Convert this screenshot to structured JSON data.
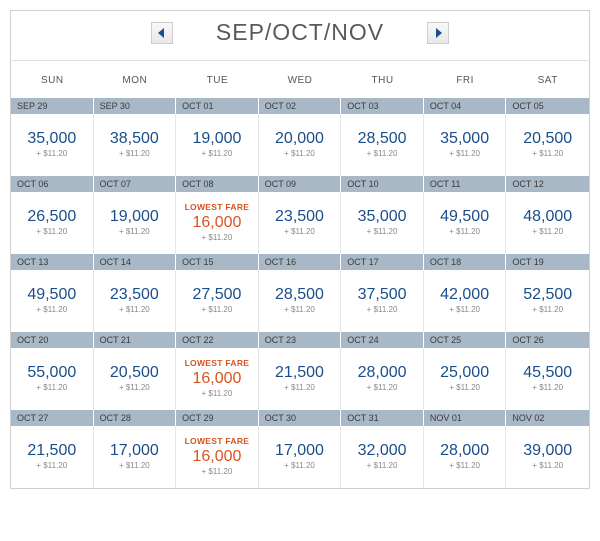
{
  "header": {
    "title": "SEP/OCT/NOV"
  },
  "dayLabels": [
    "SUN",
    "MON",
    "TUE",
    "WED",
    "THU",
    "FRI",
    "SAT"
  ],
  "lowestFareLabel": "LOWEST FARE",
  "taxLabel": "+ $11.20",
  "colors": {
    "miles": "#1a4e8a",
    "lowest": "#d9531e",
    "dateBar": "#a9b8c7",
    "arrow": "#1a4e8a"
  },
  "weeks": [
    {
      "dates": [
        "SEP 29",
        "SEP 30",
        "OCT 01",
        "OCT 02",
        "OCT 03",
        "OCT 04",
        "OCT 05"
      ],
      "cells": [
        {
          "miles": "35,000",
          "lowest": false
        },
        {
          "miles": "38,500",
          "lowest": false
        },
        {
          "miles": "19,000",
          "lowest": false
        },
        {
          "miles": "20,000",
          "lowest": false
        },
        {
          "miles": "28,500",
          "lowest": false
        },
        {
          "miles": "35,000",
          "lowest": false
        },
        {
          "miles": "20,500",
          "lowest": false
        }
      ]
    },
    {
      "dates": [
        "OCT 06",
        "OCT 07",
        "OCT 08",
        "OCT 09",
        "OCT 10",
        "OCT 11",
        "OCT 12"
      ],
      "cells": [
        {
          "miles": "26,500",
          "lowest": false
        },
        {
          "miles": "19,000",
          "lowest": false
        },
        {
          "miles": "16,000",
          "lowest": true
        },
        {
          "miles": "23,500",
          "lowest": false
        },
        {
          "miles": "35,000",
          "lowest": false
        },
        {
          "miles": "49,500",
          "lowest": false
        },
        {
          "miles": "48,000",
          "lowest": false
        }
      ]
    },
    {
      "dates": [
        "OCT 13",
        "OCT 14",
        "OCT 15",
        "OCT 16",
        "OCT 17",
        "OCT 18",
        "OCT 19"
      ],
      "cells": [
        {
          "miles": "49,500",
          "lowest": false
        },
        {
          "miles": "23,500",
          "lowest": false
        },
        {
          "miles": "27,500",
          "lowest": false
        },
        {
          "miles": "28,500",
          "lowest": false
        },
        {
          "miles": "37,500",
          "lowest": false
        },
        {
          "miles": "42,000",
          "lowest": false
        },
        {
          "miles": "52,500",
          "lowest": false
        }
      ]
    },
    {
      "dates": [
        "OCT 20",
        "OCT 21",
        "OCT 22",
        "OCT 23",
        "OCT 24",
        "OCT 25",
        "OCT 26"
      ],
      "cells": [
        {
          "miles": "55,000",
          "lowest": false
        },
        {
          "miles": "20,500",
          "lowest": false
        },
        {
          "miles": "16,000",
          "lowest": true
        },
        {
          "miles": "21,500",
          "lowest": false
        },
        {
          "miles": "28,000",
          "lowest": false
        },
        {
          "miles": "25,000",
          "lowest": false
        },
        {
          "miles": "45,500",
          "lowest": false
        }
      ]
    },
    {
      "dates": [
        "OCT 27",
        "OCT 28",
        "OCT 29",
        "OCT 30",
        "OCT 31",
        "NOV 01",
        "NOV 02"
      ],
      "cells": [
        {
          "miles": "21,500",
          "lowest": false
        },
        {
          "miles": "17,000",
          "lowest": false
        },
        {
          "miles": "16,000",
          "lowest": true
        },
        {
          "miles": "17,000",
          "lowest": false
        },
        {
          "miles": "32,000",
          "lowest": false
        },
        {
          "miles": "28,000",
          "lowest": false
        },
        {
          "miles": "39,000",
          "lowest": false
        }
      ]
    }
  ]
}
